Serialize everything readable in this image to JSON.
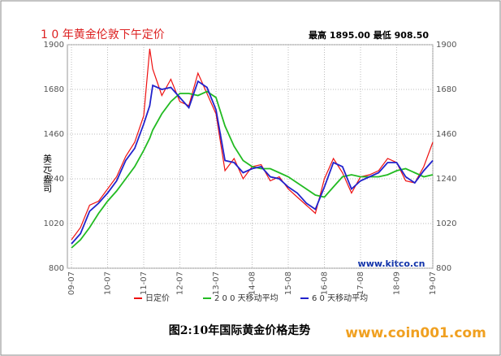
{
  "chart_data": {
    "type": "line",
    "title": "1 0 年黄金伦敦下午定价",
    "subtitle": "最高 1895.00  最低 908.50",
    "y_label": "美元/盎司",
    "watermark": "www.kitco.cn",
    "caption": "图2:10年国际黄金价格走势",
    "source": "www.coin001.com",
    "x": [
      0,
      3,
      6,
      9,
      12,
      15,
      18,
      21,
      24,
      26,
      27,
      30,
      33,
      36,
      39,
      42,
      45,
      48,
      51,
      54,
      57,
      60,
      63,
      66,
      69,
      72,
      75,
      78,
      81,
      84,
      87,
      90,
      93,
      96,
      99,
      102,
      105,
      108,
      111,
      114,
      117,
      120
    ],
    "xlim": [
      0,
      120
    ],
    "xticks": [
      {
        "value": 0,
        "label": "09-07"
      },
      {
        "value": 12,
        "label": "10-07"
      },
      {
        "value": 24,
        "label": "11-07"
      },
      {
        "value": 36,
        "label": "12-07"
      },
      {
        "value": 48,
        "label": "13-07"
      },
      {
        "value": 60,
        "label": "14-08"
      },
      {
        "value": 72,
        "label": "15-08"
      },
      {
        "value": 84,
        "label": "16-08"
      },
      {
        "value": 96,
        "label": "17-08"
      },
      {
        "value": 108,
        "label": "18-09"
      },
      {
        "value": 120,
        "label": "19-07"
      }
    ],
    "ylim": [
      800,
      1900
    ],
    "yticks": [
      800,
      1020,
      1240,
      1460,
      1680,
      1900
    ],
    "grid": true,
    "series": [
      {
        "name": "日定价",
        "color": "#ee1111",
        "values": [
          940,
          1000,
          1110,
          1130,
          1190,
          1250,
          1350,
          1420,
          1550,
          1880,
          1780,
          1650,
          1730,
          1620,
          1600,
          1760,
          1660,
          1560,
          1280,
          1340,
          1240,
          1300,
          1310,
          1230,
          1250,
          1190,
          1150,
          1110,
          1070,
          1240,
          1340,
          1270,
          1170,
          1250,
          1260,
          1280,
          1340,
          1320,
          1230,
          1220,
          1300,
          1420
        ]
      },
      {
        "name": "2 0 0 天移动平均",
        "color": "#22bb22",
        "values": [
          900,
          940,
          1000,
          1070,
          1130,
          1180,
          1240,
          1300,
          1380,
          1440,
          1480,
          1560,
          1620,
          1660,
          1660,
          1650,
          1670,
          1640,
          1500,
          1400,
          1330,
          1300,
          1290,
          1290,
          1270,
          1250,
          1220,
          1190,
          1160,
          1150,
          1200,
          1250,
          1260,
          1250,
          1250,
          1250,
          1260,
          1280,
          1290,
          1270,
          1250,
          1260
        ]
      },
      {
        "name": "6 0 天移动平均",
        "color": "#2222cc",
        "values": [
          920,
          970,
          1080,
          1120,
          1170,
          1230,
          1330,
          1390,
          1510,
          1600,
          1700,
          1680,
          1690,
          1640,
          1590,
          1720,
          1690,
          1580,
          1330,
          1320,
          1270,
          1290,
          1300,
          1250,
          1240,
          1200,
          1170,
          1120,
          1090,
          1200,
          1320,
          1300,
          1190,
          1230,
          1250,
          1270,
          1320,
          1320,
          1250,
          1220,
          1280,
          1330
        ]
      }
    ]
  }
}
